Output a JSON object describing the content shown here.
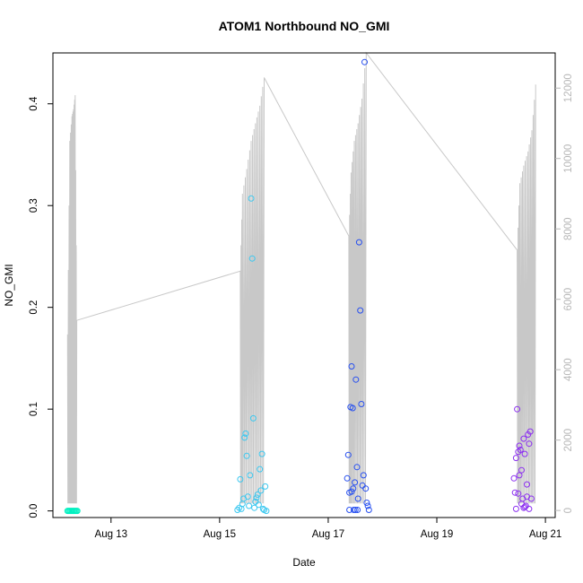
{
  "chart_data": {
    "type": "scatter",
    "title": "ATOM1 Northbound NO_GMI",
    "xlabel": "Date",
    "ylabel": "NO_GMI",
    "x_ticks": [
      {
        "label": "Aug 13",
        "value": 13
      },
      {
        "label": "Aug 15",
        "value": 15
      },
      {
        "label": "Aug 17",
        "value": 17
      },
      {
        "label": "Aug 19",
        "value": 19
      },
      {
        "label": "Aug 21",
        "value": 21
      }
    ],
    "xlim": [
      "Aug 11.93",
      "Aug 21.18"
    ],
    "y_ticks": [
      "0.0",
      "0.1",
      "0.2",
      "0.3",
      "0.4"
    ],
    "ylim": [
      -0.0065,
      0.45
    ],
    "y2_ticks": [
      "0",
      "2000",
      "4000",
      "6000",
      "8000",
      "10000",
      "12000"
    ],
    "y2lim": [
      -200,
      13000
    ],
    "y2_line_color": "#c8c8c8",
    "y2_trace": [
      {
        "flight": "Aug 12",
        "points": [
          [
            12.2,
            5000
          ],
          [
            12.24,
            10500
          ],
          [
            12.28,
            11200
          ],
          [
            12.31,
            11400
          ],
          [
            12.34,
            11800
          ],
          [
            12.37,
            5400
          ]
        ]
      },
      {
        "flight": "Aug 15",
        "points": [
          [
            15.38,
            6800
          ],
          [
            15.42,
            9000
          ],
          [
            15.5,
            9700
          ],
          [
            15.58,
            10500
          ],
          [
            15.66,
            11000
          ],
          [
            15.74,
            11500
          ],
          [
            15.82,
            12300
          ]
        ]
      },
      {
        "flight": "Aug 17",
        "points": [
          [
            17.38,
            7800
          ],
          [
            17.42,
            9600
          ],
          [
            17.48,
            10500
          ],
          [
            17.55,
            11000
          ],
          [
            17.62,
            11700
          ],
          [
            17.7,
            13000
          ]
        ]
      },
      {
        "flight": "Aug 20",
        "points": [
          [
            20.48,
            7400
          ],
          [
            20.53,
            9300
          ],
          [
            20.6,
            9800
          ],
          [
            20.68,
            10200
          ],
          [
            20.75,
            10800
          ],
          [
            20.82,
            12100
          ]
        ]
      }
    ],
    "series": [
      {
        "color": "#00f0c0",
        "values": [
          [
            12.2,
            0.0
          ],
          [
            12.22,
            0.0
          ],
          [
            12.24,
            0.0
          ],
          [
            12.26,
            0.0
          ],
          [
            12.28,
            0.0
          ],
          [
            12.3,
            0.0
          ],
          [
            12.32,
            0.0
          ],
          [
            12.34,
            0.0
          ],
          [
            12.36,
            0.0
          ],
          [
            12.38,
            0.0
          ]
        ]
      },
      {
        "color": "#3cc8f0",
        "values": [
          [
            15.33,
            0.001
          ],
          [
            15.36,
            0.003
          ],
          [
            15.38,
            0.031
          ],
          [
            15.4,
            0.002
          ],
          [
            15.42,
            0.007
          ],
          [
            15.44,
            0.012
          ],
          [
            15.46,
            0.072
          ],
          [
            15.48,
            0.076
          ],
          [
            15.5,
            0.054
          ],
          [
            15.52,
            0.014
          ],
          [
            15.54,
            0.005
          ],
          [
            15.56,
            0.035
          ],
          [
            15.58,
            0.307
          ],
          [
            15.6,
            0.248
          ],
          [
            15.62,
            0.091
          ],
          [
            15.64,
            0.003
          ],
          [
            15.66,
            0.009
          ],
          [
            15.68,
            0.013
          ],
          [
            15.7,
            0.016
          ],
          [
            15.72,
            0.006
          ],
          [
            15.74,
            0.041
          ],
          [
            15.76,
            0.02
          ],
          [
            15.78,
            0.056
          ],
          [
            15.8,
            0.002
          ],
          [
            15.82,
            0.001
          ],
          [
            15.84,
            0.024
          ],
          [
            15.86,
            0.0
          ]
        ]
      },
      {
        "color": "#2850f0",
        "values": [
          [
            17.35,
            0.032
          ],
          [
            17.37,
            0.055
          ],
          [
            17.39,
            0.018
          ],
          [
            17.41,
            0.102
          ],
          [
            17.43,
            0.142
          ],
          [
            17.45,
            0.101
          ],
          [
            17.47,
            0.001
          ],
          [
            17.49,
            0.028
          ],
          [
            17.51,
            0.129
          ],
          [
            17.53,
            0.043
          ],
          [
            17.55,
            0.012
          ],
          [
            17.57,
            0.264
          ],
          [
            17.59,
            0.197
          ],
          [
            17.61,
            0.105
          ],
          [
            17.63,
            0.025
          ],
          [
            17.65,
            0.035
          ],
          [
            17.67,
            0.441
          ],
          [
            17.69,
            0.022
          ],
          [
            17.71,
            0.008
          ],
          [
            17.73,
            0.005
          ],
          [
            17.75,
            0.001
          ],
          [
            17.39,
            0.001
          ],
          [
            17.43,
            0.019
          ],
          [
            17.46,
            0.022
          ],
          [
            17.5,
            0.001
          ],
          [
            17.54,
            0.001
          ]
        ]
      },
      {
        "color": "#8c30f0",
        "values": [
          [
            20.42,
            0.032
          ],
          [
            20.44,
            0.018
          ],
          [
            20.46,
            0.052
          ],
          [
            20.48,
            0.1
          ],
          [
            20.5,
            0.058
          ],
          [
            20.52,
            0.064
          ],
          [
            20.54,
            0.06
          ],
          [
            20.56,
            0.04
          ],
          [
            20.58,
            0.012
          ],
          [
            20.6,
            0.071
          ],
          [
            20.62,
            0.056
          ],
          [
            20.64,
            0.005
          ],
          [
            20.66,
            0.026
          ],
          [
            20.68,
            0.075
          ],
          [
            20.7,
            0.066
          ],
          [
            20.72,
            0.078
          ],
          [
            20.74,
            0.012
          ],
          [
            20.46,
            0.002
          ],
          [
            20.5,
            0.017
          ],
          [
            20.52,
            0.035
          ],
          [
            20.56,
            0.007
          ],
          [
            20.6,
            0.003
          ],
          [
            20.62,
            0.004
          ],
          [
            20.66,
            0.014
          ],
          [
            20.7,
            0.002
          ]
        ]
      }
    ]
  }
}
